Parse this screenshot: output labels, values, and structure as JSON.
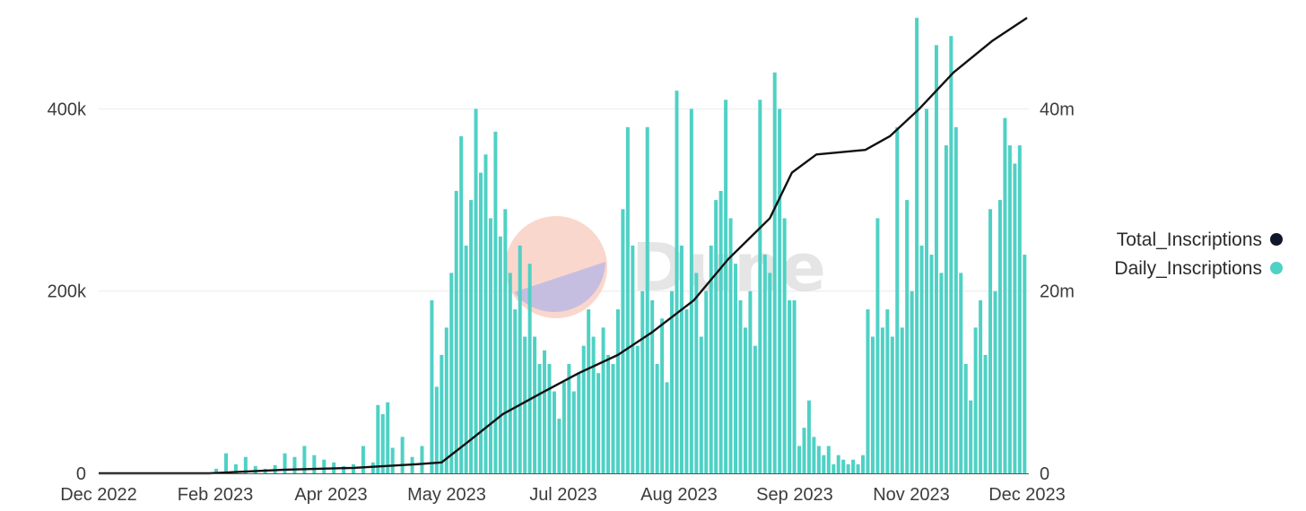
{
  "chart_data": {
    "type": "bar",
    "title": "",
    "xlabel": "",
    "ylabel": "",
    "grid": true,
    "legend_position": "right",
    "x_tick_labels": [
      "Dec 2022",
      "Feb 2023",
      "Apr 2023",
      "May 2023",
      "Jul 2023",
      "Aug 2023",
      "Sep 2023",
      "Nov 2023",
      "Dec 2023"
    ],
    "y_left": {
      "ticks": [
        0,
        200000,
        400000
      ],
      "tick_labels": [
        "0",
        "200k",
        "400k"
      ],
      "range": [
        0,
        490000
      ]
    },
    "y_right": {
      "ticks": [
        0,
        20000000,
        40000000
      ],
      "tick_labels": [
        "0",
        "20m",
        "40m"
      ],
      "range": [
        0,
        49000000
      ]
    },
    "series": [
      {
        "name": "Daily_Inscriptions",
        "type": "bar",
        "axis": "left",
        "color": "#4fd1c5",
        "points": [
          [
            "2023-01-18",
            5000
          ],
          [
            "2023-01-22",
            22000
          ],
          [
            "2023-01-26",
            10000
          ],
          [
            "2023-01-30",
            18000
          ],
          [
            "2023-02-03",
            8000
          ],
          [
            "2023-02-07",
            5000
          ],
          [
            "2023-02-11",
            9000
          ],
          [
            "2023-02-15",
            22000
          ],
          [
            "2023-02-19",
            18000
          ],
          [
            "2023-02-23",
            30000
          ],
          [
            "2023-02-27",
            20000
          ],
          [
            "2023-03-03",
            15000
          ],
          [
            "2023-03-07",
            12000
          ],
          [
            "2023-03-11",
            8000
          ],
          [
            "2023-03-15",
            10000
          ],
          [
            "2023-03-19",
            30000
          ],
          [
            "2023-03-23",
            12000
          ],
          [
            "2023-03-25",
            75000
          ],
          [
            "2023-03-27",
            65000
          ],
          [
            "2023-03-29",
            78000
          ],
          [
            "2023-03-31",
            28000
          ],
          [
            "2023-04-04",
            40000
          ],
          [
            "2023-04-08",
            18000
          ],
          [
            "2023-04-12",
            30000
          ],
          [
            "2023-04-16",
            190000
          ],
          [
            "2023-04-18",
            95000
          ],
          [
            "2023-04-20",
            130000
          ],
          [
            "2023-04-22",
            160000
          ],
          [
            "2023-04-24",
            220000
          ],
          [
            "2023-04-26",
            310000
          ],
          [
            "2023-04-28",
            370000
          ],
          [
            "2023-04-30",
            250000
          ],
          [
            "2023-05-02",
            300000
          ],
          [
            "2023-05-04",
            400000
          ],
          [
            "2023-05-06",
            330000
          ],
          [
            "2023-05-08",
            350000
          ],
          [
            "2023-05-10",
            280000
          ],
          [
            "2023-05-12",
            375000
          ],
          [
            "2023-05-14",
            260000
          ],
          [
            "2023-05-16",
            290000
          ],
          [
            "2023-05-18",
            220000
          ],
          [
            "2023-05-20",
            180000
          ],
          [
            "2023-05-22",
            250000
          ],
          [
            "2023-05-24",
            150000
          ],
          [
            "2023-05-26",
            230000
          ],
          [
            "2023-05-28",
            150000
          ],
          [
            "2023-05-30",
            120000
          ],
          [
            "2023-06-01",
            135000
          ],
          [
            "2023-06-03",
            120000
          ],
          [
            "2023-06-05",
            90000
          ],
          [
            "2023-06-07",
            60000
          ],
          [
            "2023-06-09",
            100000
          ],
          [
            "2023-06-11",
            120000
          ],
          [
            "2023-06-13",
            90000
          ],
          [
            "2023-06-15",
            110000
          ],
          [
            "2023-06-17",
            140000
          ],
          [
            "2023-06-19",
            180000
          ],
          [
            "2023-06-21",
            150000
          ],
          [
            "2023-06-23",
            110000
          ],
          [
            "2023-06-25",
            160000
          ],
          [
            "2023-06-27",
            130000
          ],
          [
            "2023-06-29",
            120000
          ],
          [
            "2023-07-01",
            180000
          ],
          [
            "2023-07-03",
            290000
          ],
          [
            "2023-07-05",
            380000
          ],
          [
            "2023-07-07",
            250000
          ],
          [
            "2023-07-09",
            140000
          ],
          [
            "2023-07-11",
            200000
          ],
          [
            "2023-07-13",
            380000
          ],
          [
            "2023-07-15",
            190000
          ],
          [
            "2023-07-17",
            120000
          ],
          [
            "2023-07-19",
            170000
          ],
          [
            "2023-07-21",
            100000
          ],
          [
            "2023-07-23",
            200000
          ],
          [
            "2023-07-25",
            420000
          ],
          [
            "2023-07-27",
            250000
          ],
          [
            "2023-07-29",
            180000
          ],
          [
            "2023-07-31",
            400000
          ],
          [
            "2023-08-02",
            220000
          ],
          [
            "2023-08-04",
            150000
          ],
          [
            "2023-08-06",
            200000
          ],
          [
            "2023-08-08",
            250000
          ],
          [
            "2023-08-10",
            300000
          ],
          [
            "2023-08-12",
            310000
          ],
          [
            "2023-08-14",
            410000
          ],
          [
            "2023-08-16",
            280000
          ],
          [
            "2023-08-18",
            230000
          ],
          [
            "2023-08-20",
            190000
          ],
          [
            "2023-08-22",
            160000
          ],
          [
            "2023-08-24",
            200000
          ],
          [
            "2023-08-26",
            140000
          ],
          [
            "2023-08-28",
            410000
          ],
          [
            "2023-08-30",
            240000
          ],
          [
            "2023-09-01",
            220000
          ],
          [
            "2023-09-03",
            440000
          ],
          [
            "2023-09-05",
            400000
          ],
          [
            "2023-09-07",
            280000
          ],
          [
            "2023-09-09",
            190000
          ],
          [
            "2023-09-11",
            190000
          ],
          [
            "2023-09-13",
            30000
          ],
          [
            "2023-09-15",
            50000
          ],
          [
            "2023-09-17",
            80000
          ],
          [
            "2023-09-19",
            40000
          ],
          [
            "2023-09-21",
            30000
          ],
          [
            "2023-09-23",
            20000
          ],
          [
            "2023-09-25",
            30000
          ],
          [
            "2023-09-27",
            10000
          ],
          [
            "2023-09-29",
            20000
          ],
          [
            "2023-10-01",
            15000
          ],
          [
            "2023-10-03",
            10000
          ],
          [
            "2023-10-05",
            15000
          ],
          [
            "2023-10-07",
            10000
          ],
          [
            "2023-10-09",
            20000
          ],
          [
            "2023-10-11",
            180000
          ],
          [
            "2023-10-13",
            150000
          ],
          [
            "2023-10-15",
            280000
          ],
          [
            "2023-10-17",
            160000
          ],
          [
            "2023-10-19",
            180000
          ],
          [
            "2023-10-21",
            150000
          ],
          [
            "2023-10-23",
            380000
          ],
          [
            "2023-10-25",
            160000
          ],
          [
            "2023-10-27",
            300000
          ],
          [
            "2023-10-29",
            200000
          ],
          [
            "2023-10-31",
            500000
          ],
          [
            "2023-11-02",
            250000
          ],
          [
            "2023-11-04",
            400000
          ],
          [
            "2023-11-06",
            240000
          ],
          [
            "2023-11-08",
            470000
          ],
          [
            "2023-11-10",
            220000
          ],
          [
            "2023-11-12",
            360000
          ],
          [
            "2023-11-14",
            480000
          ],
          [
            "2023-11-16",
            380000
          ],
          [
            "2023-11-18",
            220000
          ],
          [
            "2023-11-20",
            120000
          ],
          [
            "2023-11-22",
            80000
          ],
          [
            "2023-11-24",
            160000
          ],
          [
            "2023-11-26",
            190000
          ],
          [
            "2023-11-28",
            130000
          ],
          [
            "2023-11-30",
            290000
          ],
          [
            "2023-12-02",
            200000
          ],
          [
            "2023-12-04",
            300000
          ],
          [
            "2023-12-06",
            390000
          ],
          [
            "2023-12-08",
            360000
          ],
          [
            "2023-12-10",
            340000
          ],
          [
            "2023-12-12",
            360000
          ],
          [
            "2023-12-14",
            240000
          ]
        ]
      },
      {
        "name": "Total_Inscriptions",
        "type": "line",
        "axis": "right",
        "color": "#111111",
        "points": [
          [
            "2022-12-01",
            0
          ],
          [
            "2023-01-15",
            0
          ],
          [
            "2023-02-15",
            400000
          ],
          [
            "2023-03-15",
            600000
          ],
          [
            "2023-04-10",
            1000000
          ],
          [
            "2023-04-20",
            1200000
          ],
          [
            "2023-05-01",
            3500000
          ],
          [
            "2023-05-15",
            6500000
          ],
          [
            "2023-06-01",
            9000000
          ],
          [
            "2023-06-15",
            11000000
          ],
          [
            "2023-07-01",
            13000000
          ],
          [
            "2023-07-15",
            15500000
          ],
          [
            "2023-08-01",
            19000000
          ],
          [
            "2023-08-15",
            23500000
          ],
          [
            "2023-09-01",
            28000000
          ],
          [
            "2023-09-10",
            33000000
          ],
          [
            "2023-09-20",
            35000000
          ],
          [
            "2023-10-10",
            35500000
          ],
          [
            "2023-10-20",
            37000000
          ],
          [
            "2023-11-01",
            40000000
          ],
          [
            "2023-11-15",
            44000000
          ],
          [
            "2023-12-01",
            47500000
          ],
          [
            "2023-12-15",
            50000000
          ]
        ]
      }
    ]
  },
  "legend": {
    "items": [
      {
        "label": "Total_Inscriptions",
        "color": "#0f172a"
      },
      {
        "label": "Daily_Inscriptions",
        "color": "#4fd1c5"
      }
    ]
  },
  "watermark": {
    "text": "Dune",
    "circle_color": "#f8c9bb",
    "wedge_color": "#b9b8e6"
  }
}
